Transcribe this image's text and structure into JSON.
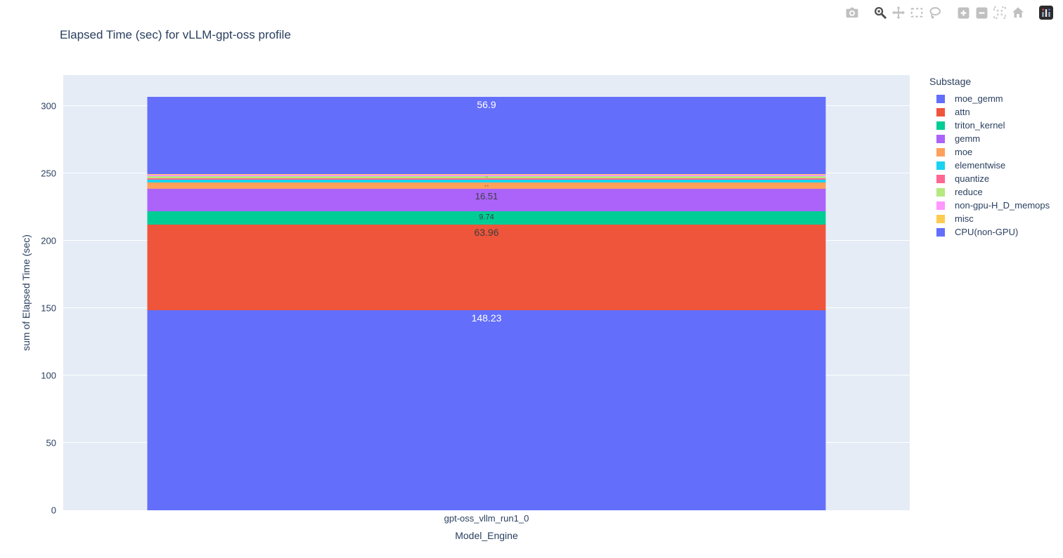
{
  "toolbar": {
    "icons": [
      "camera-download-icon",
      "zoom-icon",
      "pan-icon",
      "box-select-icon",
      "lasso-select-icon",
      "zoom-in-icon",
      "zoom-out-icon",
      "autoscale-icon",
      "reset-axes-home-icon",
      "plotly-logo-icon"
    ],
    "active_icon": "zoom-icon"
  },
  "chart_data": {
    "type": "bar",
    "stacked": true,
    "title": "Elapsed Time (sec) for vLLM-gpt-oss profile",
    "xlabel": "Model_Engine",
    "ylabel": "sum of Elapsed Time (sec)",
    "categories": [
      "gpt-oss_vllm_run1_0"
    ],
    "ylim": [
      0,
      323
    ],
    "yticks": [
      0,
      50,
      100,
      150,
      200,
      250,
      300
    ],
    "grid": true,
    "plot_bg_color": "#E5ECF6",
    "legend_title": "Substage",
    "legend_position": "right",
    "series": [
      {
        "name": "CPU(non-GPU)",
        "value": 148.23,
        "color": "#636EFA",
        "label": "148.23",
        "label_color": "#ffffff",
        "label_size": 14
      },
      {
        "name": "attn",
        "value": 63.96,
        "color": "#EF553B",
        "label": "63.96",
        "label_color": "#3d3d3d",
        "label_size": 14
      },
      {
        "name": "triton_kernel",
        "value": 9.74,
        "color": "#00CC96",
        "label": "9.74",
        "label_color": "#3d3d3d",
        "label_size": 11
      },
      {
        "name": "gemm",
        "value": 16.51,
        "color": "#AB63FA",
        "label": "16.51",
        "label_color": "#3d3d3d",
        "label_size": 13
      },
      {
        "name": "moe",
        "value": 4.9,
        "color": "#FFA15A",
        "label": "4.9",
        "label_color": "#555555",
        "label_size": 4
      },
      {
        "name": "elementwise",
        "value": 2.3,
        "color": "#19D3F3",
        "label": "",
        "label_color": "#3d3d3d",
        "label_size": 0
      },
      {
        "name": "quantize",
        "value": 1.05,
        "color": "#FF6692",
        "label": "",
        "label_color": "#3d3d3d",
        "label_size": 0
      },
      {
        "name": "reduce",
        "value": 1.2,
        "color": "#B6E880",
        "label": "1.2",
        "label_color": "#555555",
        "label_size": 3
      },
      {
        "name": "non-gpu-H_D_memops",
        "value": 1.05,
        "color": "#FF97FF",
        "label": "",
        "label_color": "#3d3d3d",
        "label_size": 0
      },
      {
        "name": "misc",
        "value": 0.9,
        "color": "#FECB52",
        "label": "",
        "label_color": "#3d3d3d",
        "label_size": 0
      },
      {
        "name": "moe_gemm",
        "value": 56.9,
        "color": "#636EFA",
        "label": "56.9",
        "label_color": "#ffffff",
        "label_size": 14
      }
    ],
    "legend": [
      {
        "label": "moe_gemm",
        "color": "#636EFA"
      },
      {
        "label": "attn",
        "color": "#EF553B"
      },
      {
        "label": "triton_kernel",
        "color": "#00CC96"
      },
      {
        "label": "gemm",
        "color": "#AB63FA"
      },
      {
        "label": "moe",
        "color": "#FFA15A"
      },
      {
        "label": "elementwise",
        "color": "#19D3F3"
      },
      {
        "label": "quantize",
        "color": "#FF6692"
      },
      {
        "label": "reduce",
        "color": "#B6E880"
      },
      {
        "label": "non-gpu-H_D_memops",
        "color": "#FF97FF"
      },
      {
        "label": "misc",
        "color": "#FECB52"
      },
      {
        "label": "CPU(non-GPU)",
        "color": "#636EFA"
      }
    ]
  }
}
